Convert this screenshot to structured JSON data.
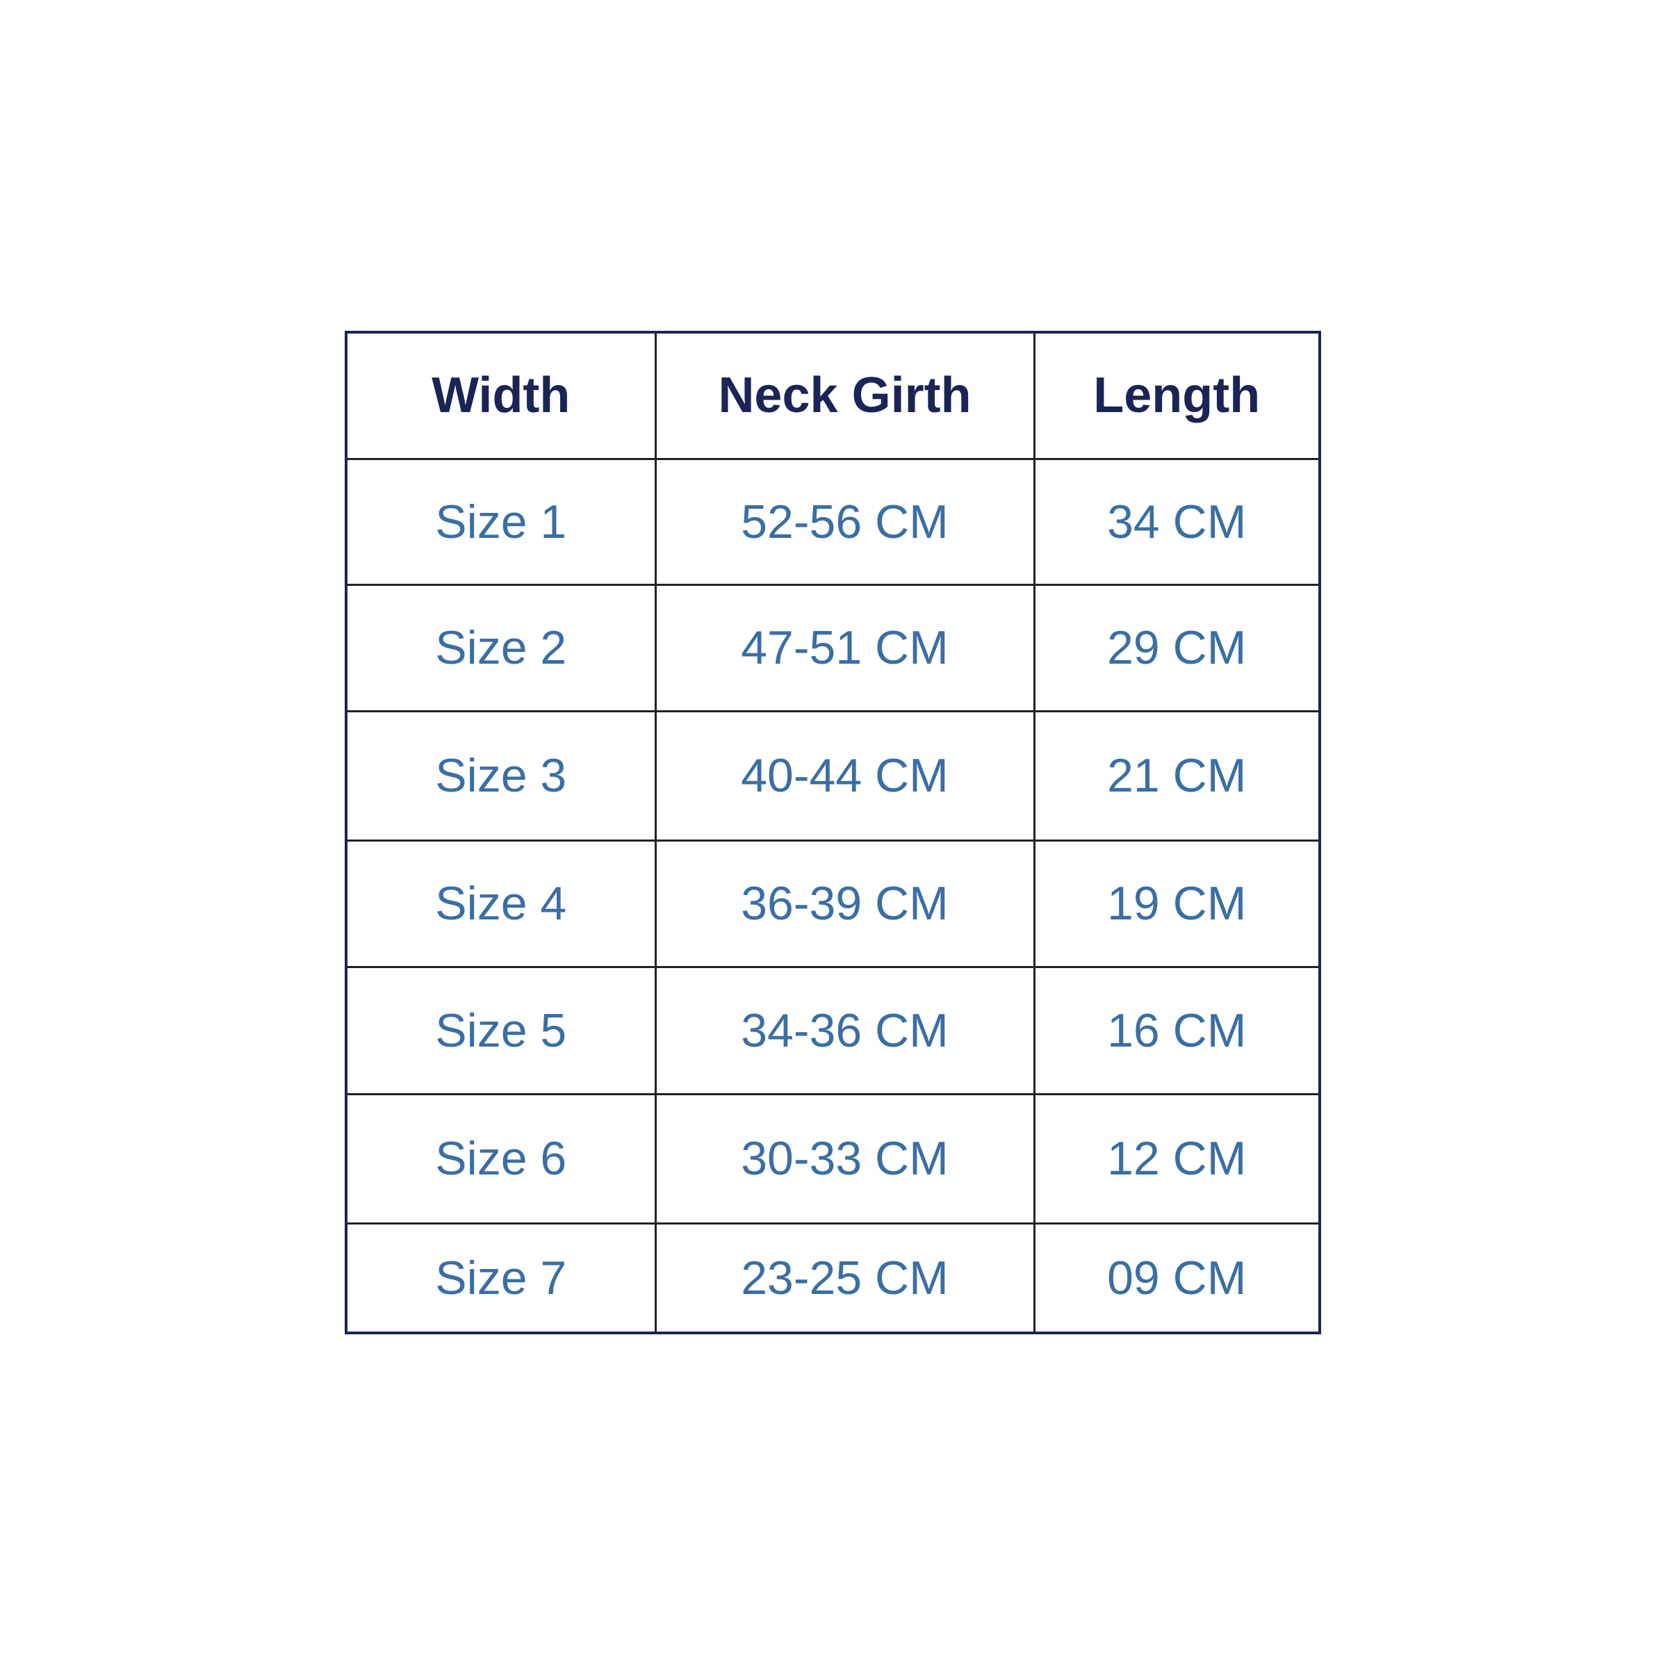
{
  "table": {
    "header": [
      "Width",
      "Neck Girth",
      "Length"
    ],
    "rows": [
      [
        "Size 1",
        "52-56 CM",
        "34 CM"
      ],
      [
        "Size 2",
        "47-51 CM",
        "29 CM"
      ],
      [
        "Size 3",
        "40-44 CM",
        "21 CM"
      ],
      [
        "Size 4",
        "36-39 CM",
        "19 CM"
      ],
      [
        "Size 5",
        "34-36 CM",
        "16 CM"
      ],
      [
        "Size 6",
        "30-33 CM",
        "12 CM"
      ],
      [
        "Size 7",
        "23-25 CM",
        "09 CM"
      ]
    ]
  }
}
